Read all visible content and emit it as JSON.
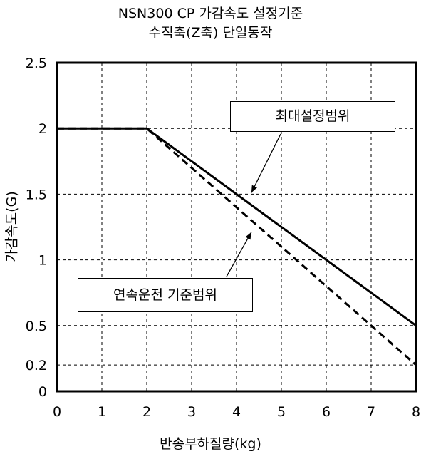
{
  "chart_data": {
    "type": "line",
    "title": "NSN300 CP 가감속도 설정기준",
    "subtitle": "수직축(Z축) 단일동작",
    "xlabel": "반송부하질량(kg)",
    "ylabel": "가감속도(G)",
    "xlim": [
      0,
      8
    ],
    "ylim": [
      0,
      2.5
    ],
    "x_ticks": [
      "0",
      "1",
      "2",
      "3",
      "4",
      "5",
      "6",
      "7",
      "8"
    ],
    "y_ticks": [
      "0",
      "0.2",
      "0.5",
      "1",
      "1.5",
      "2",
      "2.5"
    ],
    "grid": true,
    "series": [
      {
        "name": "최대설정범위",
        "style": "solid",
        "x": [
          0,
          2,
          8
        ],
        "y": [
          2,
          2,
          0.5
        ]
      },
      {
        "name": "연속운전 기준범위",
        "style": "dashed",
        "x": [
          0,
          2,
          8
        ],
        "y": [
          2,
          2,
          0.2
        ]
      }
    ],
    "annotations": [
      {
        "text": "최대설정범위",
        "points_to": [
          4.3,
          1.5
        ]
      },
      {
        "text": "연속운전 기준범위",
        "points_to": [
          4.3,
          1.2
        ]
      }
    ]
  }
}
